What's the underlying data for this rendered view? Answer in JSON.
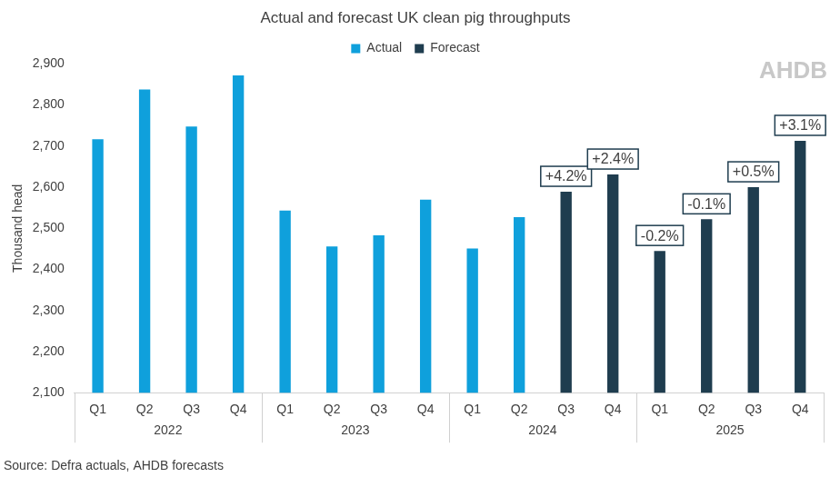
{
  "chart_data": {
    "type": "bar",
    "title": "Actual and forecast UK clean pig throughputs",
    "y_label": "Thousand head",
    "categories": [
      "Q1",
      "Q2",
      "Q3",
      "Q4",
      "Q1",
      "Q2",
      "Q3",
      "Q4",
      "Q1",
      "Q2",
      "Q3",
      "Q4",
      "Q1",
      "Q2",
      "Q3",
      "Q4"
    ],
    "groups": [
      "2022",
      "2023",
      "2024",
      "2025"
    ],
    "series": [
      {
        "name": "Actual",
        "color": "#0fa0dc",
        "values": [
          2717,
          2838,
          2748,
          2872,
          2543,
          2456,
          2483,
          2570,
          2451,
          2527,
          null,
          null,
          null,
          null,
          null,
          null
        ]
      },
      {
        "name": "Forecast",
        "color": "#1f3d4f",
        "values": [
          null,
          null,
          null,
          null,
          null,
          null,
          null,
          null,
          null,
          null,
          2589,
          2631,
          2445,
          2522,
          2600,
          2713
        ],
        "annotations": [
          null,
          null,
          null,
          null,
          null,
          null,
          null,
          null,
          null,
          null,
          "+4.2%",
          "+2.4%",
          "-0.2%",
          "-0.1%",
          "+0.5%",
          "+3.1%"
        ]
      }
    ],
    "ylim": [
      2100,
      2900
    ],
    "yticks": [
      {
        "value": 2100,
        "label": "2,100"
      },
      {
        "value": 2200,
        "label": "2,200"
      },
      {
        "value": 2300,
        "label": "2,300"
      },
      {
        "value": 2400,
        "label": "2,400"
      },
      {
        "value": 2500,
        "label": "2,500"
      },
      {
        "value": 2600,
        "label": "2,600"
      },
      {
        "value": 2700,
        "label": "2,700"
      },
      {
        "value": 2800,
        "label": "2,800"
      },
      {
        "value": 2900,
        "label": "2,900"
      }
    ],
    "grid": false,
    "legend": "top",
    "source": "Source: Defra actuals, AHDB forecasts",
    "watermark": "AHDB"
  }
}
